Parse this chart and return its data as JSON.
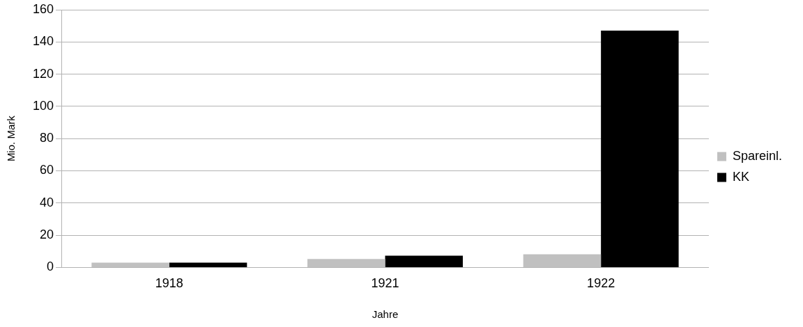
{
  "chart_data": {
    "type": "bar",
    "xlabel": "Jahre",
    "ylabel": "Mio. Mark",
    "categories": [
      "1918",
      "1921",
      "1922"
    ],
    "series": [
      {
        "name": "Spareinl.",
        "color": "#c0c0c0",
        "values": [
          3,
          5.3,
          8.2
        ]
      },
      {
        "name": "KK",
        "color": "#000000",
        "values": [
          3,
          7.3,
          147
        ]
      }
    ],
    "ylim": [
      0,
      160
    ],
    "yticks": [
      0,
      20,
      40,
      60,
      80,
      100,
      120,
      140,
      160
    ],
    "grid": "y",
    "legend": "right"
  }
}
